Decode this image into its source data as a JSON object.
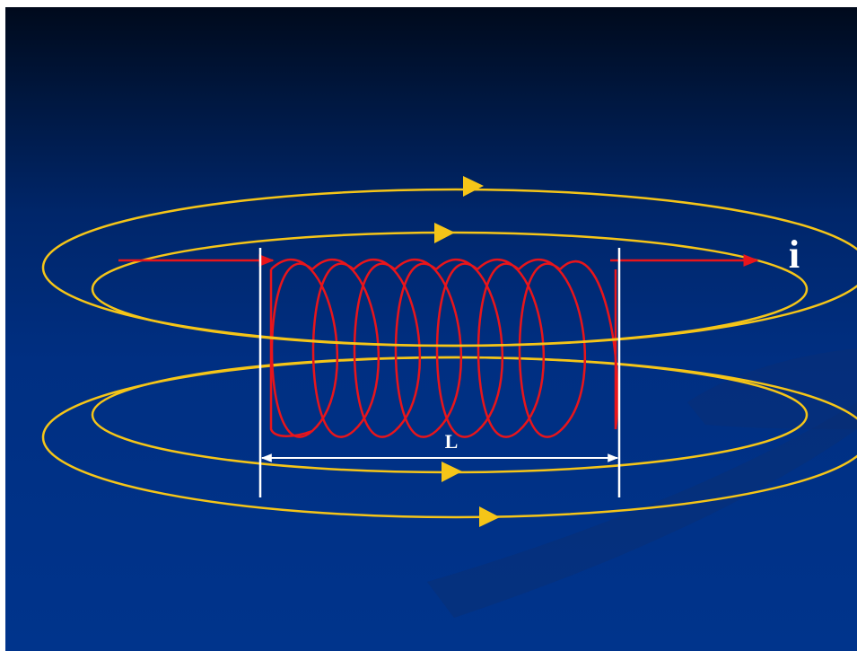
{
  "labels": {
    "length": "L",
    "current": "i"
  },
  "colors": {
    "field_lines": "#f5c518",
    "coil": "#e8151b",
    "markers": "#ffffff",
    "background_top": "#000a1c",
    "background_bottom": "#00348c"
  }
}
